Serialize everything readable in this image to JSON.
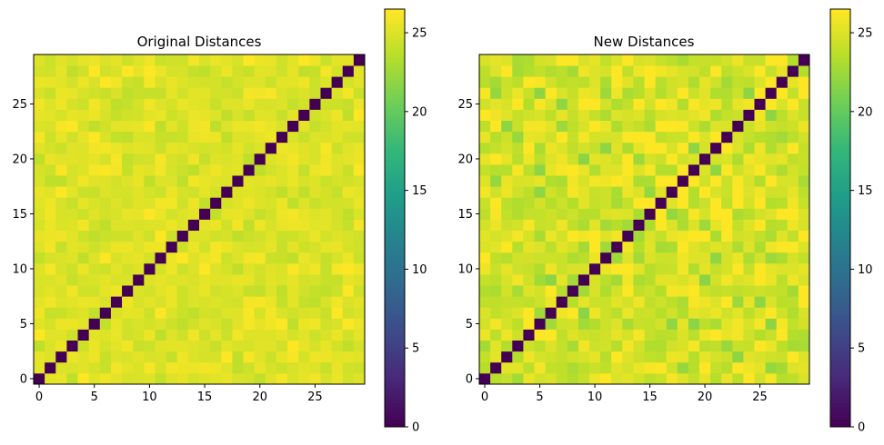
{
  "colormap": "viridis",
  "chart_data": [
    {
      "type": "heatmap",
      "title": "Original Distances",
      "xlabel": "",
      "ylabel": "",
      "n": 30,
      "origin": "lower",
      "diagonal_value": 0,
      "off_diagonal_range": [
        24.0,
        26.5
      ],
      "off_diagonal_typical": 25.2,
      "x_ticks": [
        0,
        5,
        10,
        15,
        20,
        25
      ],
      "y_ticks": [
        0,
        5,
        10,
        15,
        20,
        25
      ],
      "colorbar": {
        "min": 0,
        "max": 26.5,
        "ticks": [
          0,
          5,
          10,
          15,
          20,
          25
        ]
      },
      "seed": 7
    },
    {
      "type": "heatmap",
      "title": "New Distances",
      "xlabel": "",
      "ylabel": "",
      "n": 30,
      "origin": "lower",
      "diagonal_value": 0,
      "off_diagonal_range": [
        21.5,
        26.5
      ],
      "off_diagonal_typical": 24.8,
      "x_ticks": [
        0,
        5,
        10,
        15,
        20,
        25
      ],
      "y_ticks": [
        0,
        5,
        10,
        15,
        20,
        25
      ],
      "colorbar": {
        "min": 0,
        "max": 26.5,
        "ticks": [
          0,
          5,
          10,
          15,
          20,
          25
        ]
      },
      "seed": 19
    }
  ]
}
